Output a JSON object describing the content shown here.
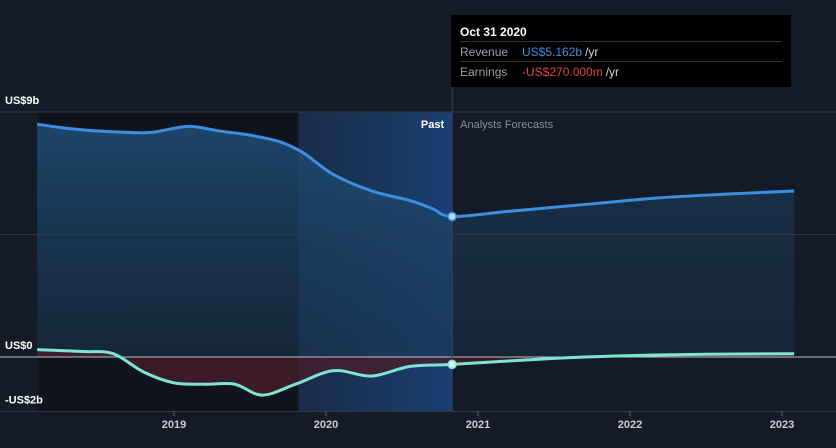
{
  "chart_data": {
    "type": "area",
    "x_axis": {
      "ticks": [
        "2019",
        "2020",
        "2021",
        "2022",
        "2023"
      ]
    },
    "y_axis": {
      "labels": [
        "US$9b",
        "US$0",
        "-US$2b"
      ],
      "ylim": [
        -2,
        9
      ],
      "gridlines": [
        9,
        4.5,
        0,
        -2
      ]
    },
    "regions": {
      "past_label": "Past",
      "forecast_label": "Analysts Forecasts"
    },
    "current_date_decimal": 2020.83,
    "series": [
      {
        "name": "Revenue",
        "color": "#3b8ee0",
        "points": [
          [
            2018.1,
            8.55
          ],
          [
            2018.3,
            8.4
          ],
          [
            2018.5,
            8.3
          ],
          [
            2018.7,
            8.25
          ],
          [
            2018.85,
            8.25
          ],
          [
            2019.05,
            8.45
          ],
          [
            2019.15,
            8.45
          ],
          [
            2019.3,
            8.3
          ],
          [
            2019.5,
            8.15
          ],
          [
            2019.7,
            7.9
          ],
          [
            2019.85,
            7.5
          ],
          [
            2020.05,
            6.7
          ],
          [
            2020.3,
            6.1
          ],
          [
            2020.55,
            5.75
          ],
          [
            2020.7,
            5.45
          ],
          [
            2020.83,
            5.162
          ]
        ],
        "forecast": [
          [
            2020.83,
            5.162
          ],
          [
            2021.2,
            5.35
          ],
          [
            2021.7,
            5.6
          ],
          [
            2022.2,
            5.85
          ],
          [
            2022.7,
            6.0
          ],
          [
            2023.08,
            6.1
          ]
        ]
      },
      {
        "name": "Earnings",
        "color": "#7ee5d4",
        "points": [
          [
            2018.1,
            0.27
          ],
          [
            2018.4,
            0.2
          ],
          [
            2018.6,
            0.12
          ],
          [
            2018.8,
            -0.55
          ],
          [
            2019.0,
            -0.95
          ],
          [
            2019.2,
            -1.0
          ],
          [
            2019.4,
            -1.0
          ],
          [
            2019.58,
            -1.4
          ],
          [
            2019.8,
            -1.0
          ],
          [
            2020.05,
            -0.5
          ],
          [
            2020.3,
            -0.7
          ],
          [
            2020.55,
            -0.35
          ],
          [
            2020.83,
            -0.27
          ]
        ],
        "forecast": [
          [
            2020.83,
            -0.27
          ],
          [
            2021.5,
            -0.05
          ],
          [
            2022.0,
            0.05
          ],
          [
            2022.5,
            0.1
          ],
          [
            2023.08,
            0.12
          ]
        ]
      }
    ]
  },
  "tooltip": {
    "date": "Oct 31 2020",
    "revenue_label": "Revenue",
    "revenue_value": "US$5.162b",
    "revenue_unit": "/yr",
    "earnings_label": "Earnings",
    "earnings_value": "-US$270.000m",
    "earnings_unit": "/yr"
  }
}
